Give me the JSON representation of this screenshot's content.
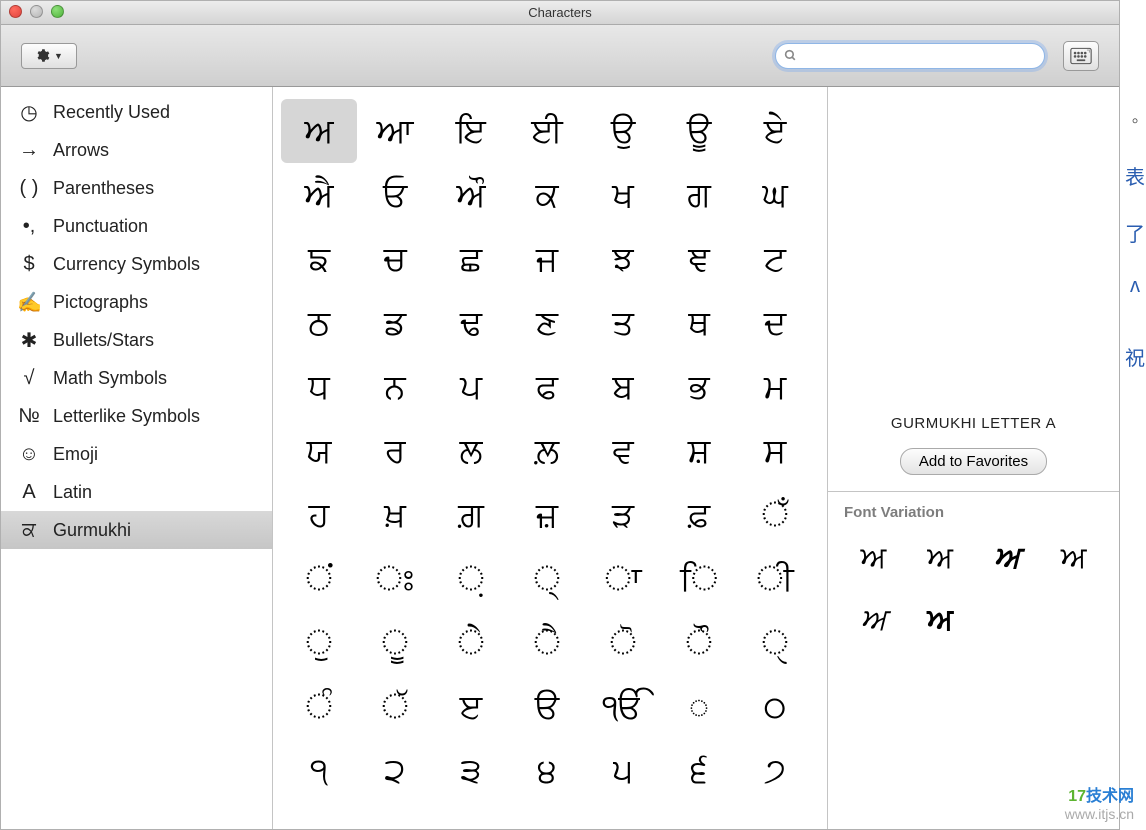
{
  "window": {
    "title": "Characters"
  },
  "toolbar": {
    "search_value": "",
    "search_placeholder": ""
  },
  "sidebar": {
    "items": [
      {
        "icon": "◷",
        "label": "Recently Used",
        "selected": false
      },
      {
        "icon": "→",
        "label": "Arrows",
        "selected": false
      },
      {
        "icon": "( )",
        "label": "Parentheses",
        "selected": false
      },
      {
        "icon": "•,",
        "label": "Punctuation",
        "selected": false
      },
      {
        "icon": "$",
        "label": "Currency Symbols",
        "selected": false
      },
      {
        "icon": "✍",
        "label": "Pictographs",
        "selected": false
      },
      {
        "icon": "✱",
        "label": "Bullets/Stars",
        "selected": false
      },
      {
        "icon": "√",
        "label": "Math Symbols",
        "selected": false
      },
      {
        "icon": "№",
        "label": "Letterlike Symbols",
        "selected": false
      },
      {
        "icon": "☺",
        "label": "Emoji",
        "selected": false
      },
      {
        "icon": "A",
        "label": "Latin",
        "selected": false
      },
      {
        "icon": "ਕ",
        "label": "Gurmukhi",
        "selected": true
      }
    ]
  },
  "grid": {
    "selected_index": 0,
    "chars": [
      "ਅ",
      "ਆ",
      "ਇ",
      "ਈ",
      "ਉ",
      "ਊ",
      "ਏ",
      "ਐ",
      "ਓ",
      "ਔ",
      "ਕ",
      "ਖ",
      "ਗ",
      "ਘ",
      "ਙ",
      "ਚ",
      "ਛ",
      "ਜ",
      "ਝ",
      "ਞ",
      "ਟ",
      "ਠ",
      "ਡ",
      "ਢ",
      "ਣ",
      "ਤ",
      "ਥ",
      "ਦ",
      "ਧ",
      "ਨ",
      "ਪ",
      "ਫ",
      "ਬ",
      "ਭ",
      "ਮ",
      "ਯ",
      "ਰ",
      "ਲ",
      "ਲ਼",
      "ਵ",
      "ਸ਼",
      "ਸ",
      "ਹ",
      "ਖ਼",
      "ਗ਼",
      "ਜ਼",
      "ੜ",
      "ਫ਼",
      "ਁ",
      "ਂ",
      "ਃ",
      "਼",
      "੍",
      "ਾ",
      "ਿ",
      "ੀ",
      "ੁ",
      "ੂ",
      "ੇ",
      "ੈ",
      "ੋ",
      "ੌ",
      "ੑ",
      "ੰ",
      "ੱ",
      "ੲ",
      "ੳ",
      "ੴ",
      "◌",
      "੦",
      "੧",
      "੨",
      "੩",
      "੪",
      "੫",
      "੬",
      "੭"
    ]
  },
  "details": {
    "char_name": "GURMUKHI LETTER A",
    "favorites_label": "Add to Favorites",
    "font_variation_label": "Font Variation",
    "font_variations": [
      "ਅ",
      "ਅ",
      "ਅ",
      "ਅ",
      "ਅ",
      "ਅ"
    ]
  },
  "watermark": {
    "brand1": "17",
    "brand2": "技术网",
    "url": "www.itjs.cn"
  },
  "colors": {
    "titlebar_top": "#ededed",
    "titlebar_bot": "#d4d4d4",
    "toolbar_top": "#e8e8e8",
    "toolbar_bot": "#cfcfcf",
    "selected_bg": "#d6d6d6",
    "border": "#c4c4c4",
    "section_text": "#7d7d7d"
  }
}
